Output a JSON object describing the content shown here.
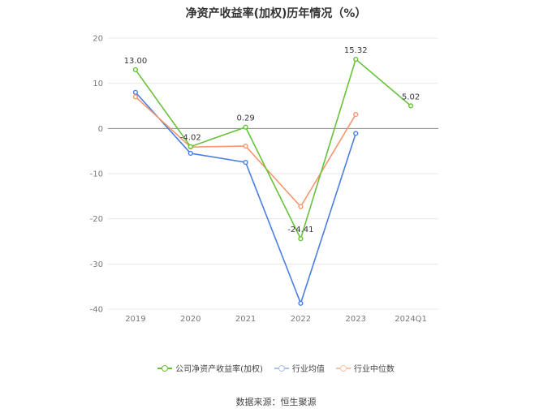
{
  "chart_data": {
    "type": "line",
    "title": "净资产收益率(加权)历年情况（%）",
    "categories": [
      "2019",
      "2020",
      "2021",
      "2022",
      "2023",
      "2024Q1"
    ],
    "ylim": [
      -40,
      20
    ],
    "yticks": [
      20,
      10,
      0,
      -10,
      -20,
      -30,
      -40
    ],
    "grid": true,
    "legend_position": "bottom",
    "series": [
      {
        "name": "公司净资产收益率(加权)",
        "color": "#67c23a",
        "values": [
          13.0,
          -4.02,
          0.29,
          -24.41,
          15.32,
          5.02
        ],
        "labels": [
          "13.00",
          "-4.02",
          "0.29",
          "-24.41",
          "15.32",
          "5.02"
        ]
      },
      {
        "name": "行业均值",
        "color": "#4a7fe0",
        "values": [
          8.0,
          -5.5,
          -7.5,
          -38.7,
          -1.1,
          null
        ]
      },
      {
        "name": "行业中位数",
        "color": "#f4976c",
        "values": [
          7.0,
          -4.1,
          -3.9,
          -17.3,
          3.1,
          null
        ]
      }
    ]
  },
  "source": "数据来源：恒生聚源"
}
